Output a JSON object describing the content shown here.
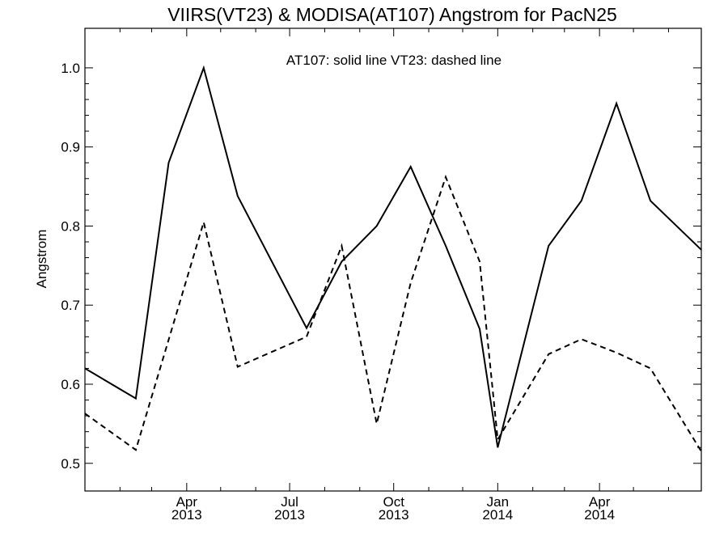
{
  "chart_data": {
    "type": "line",
    "title": "VIIRS(VT23) & MODISA(AT107)  Angstrom for PacN25",
    "ylabel": "Angstrom",
    "xlabel": "",
    "annotation": "AT107: solid line   VT23: dashed line",
    "ylim": [
      0.465,
      1.05
    ],
    "xlim": [
      "2013-01-01",
      "2014-06-30"
    ],
    "y_ticks": [
      0.5,
      0.6,
      0.7,
      0.8,
      0.9,
      1.0
    ],
    "y_tick_labels": [
      "0.5",
      "0.6",
      "0.7",
      "0.8",
      "0.9",
      "1.0"
    ],
    "x_major_ticks": [
      {
        "date": "2013-04-01",
        "month": "Apr",
        "year": "2013"
      },
      {
        "date": "2013-07-01",
        "month": "Jul",
        "year": "2013"
      },
      {
        "date": "2013-10-01",
        "month": "Oct",
        "year": "2013"
      },
      {
        "date": "2014-01-01",
        "month": "Jan",
        "year": "2014"
      },
      {
        "date": "2014-04-01",
        "month": "Apr",
        "year": "2014"
      }
    ],
    "x_minor_ticks": [
      "2013-02-01",
      "2013-03-01",
      "2013-05-01",
      "2013-06-01",
      "2013-08-01",
      "2013-09-01",
      "2013-11-01",
      "2013-12-01",
      "2014-02-01",
      "2014-03-01",
      "2014-05-01",
      "2014-06-01"
    ],
    "grid": false,
    "series": [
      {
        "name": "AT107",
        "style": "solid",
        "color": "#000000",
        "x": [
          "2013-01-01",
          "2013-02-15",
          "2013-03-16",
          "2013-04-16",
          "2013-05-16",
          "2013-07-16",
          "2013-08-16",
          "2013-09-16",
          "2013-10-16",
          "2013-11-16",
          "2013-12-16",
          "2014-01-01",
          "2014-02-15",
          "2014-03-16",
          "2014-04-16",
          "2014-05-16",
          "2014-06-30"
        ],
        "y": [
          0.62,
          0.582,
          0.88,
          1.0,
          0.838,
          0.671,
          0.755,
          0.8,
          0.875,
          0.775,
          0.67,
          0.52,
          0.775,
          0.832,
          0.955,
          0.832,
          0.77
        ]
      },
      {
        "name": "VT23",
        "style": "dashed",
        "color": "#000000",
        "x": [
          "2013-01-01",
          "2013-02-15",
          "2013-04-16",
          "2013-05-16",
          "2013-07-16",
          "2013-08-16",
          "2013-09-16",
          "2013-10-16",
          "2013-11-16",
          "2013-12-16",
          "2014-01-01",
          "2014-02-15",
          "2014-03-16",
          "2014-04-16",
          "2014-05-16",
          "2014-06-30"
        ],
        "y": [
          0.563,
          0.517,
          0.805,
          0.622,
          0.66,
          0.775,
          0.55,
          0.728,
          0.862,
          0.755,
          0.53,
          0.638,
          0.657,
          0.64,
          0.62,
          0.515
        ]
      }
    ]
  }
}
